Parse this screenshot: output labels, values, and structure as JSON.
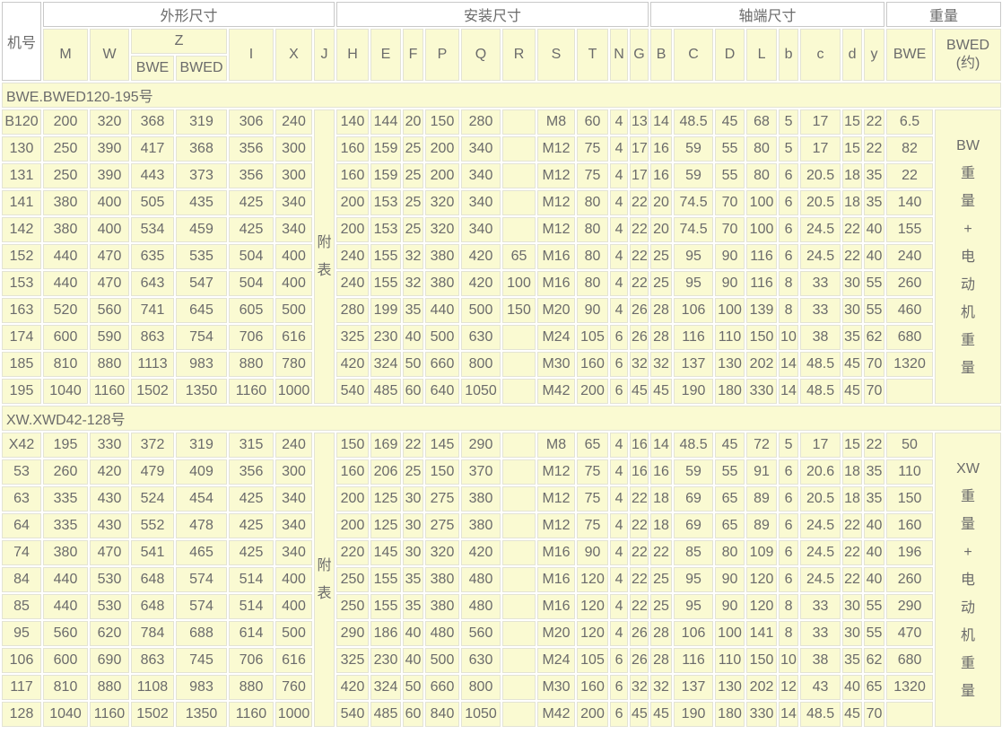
{
  "header": {
    "machine": "机号",
    "groups": [
      {
        "label": "外形尺寸"
      },
      {
        "label": "安装尺寸"
      },
      {
        "label": "轴端尺寸"
      },
      {
        "label": "重量"
      }
    ],
    "m": "M",
    "w": "W",
    "z": "Z",
    "z_bwe": "BWE",
    "z_bwed": "BWED",
    "i": "I",
    "x": "X",
    "j": "J",
    "install": [
      "H",
      "E",
      "F",
      "P",
      "Q",
      "R",
      "S",
      "T",
      "N",
      "G"
    ],
    "shaft": [
      "B",
      "C",
      "D",
      "L",
      "b",
      "c",
      "d",
      "y"
    ],
    "w_bwe": "BWE",
    "w_bwed": "BWED\n(约)"
  },
  "colors": {
    "cell_bg": "#fafad2",
    "text": "#6b6b6b",
    "white_bg": "#ffffff"
  },
  "sections": [
    {
      "title": "BWE.BWED120-195号",
      "j_note": "附\n表",
      "weight_note": "BW\n重\n量\n+\n电\n动\n机\n重\n量",
      "rows": [
        [
          "B120",
          "200",
          "320",
          "368",
          "319",
          "306",
          "240",
          "140",
          "144",
          "20",
          "150",
          "280",
          "",
          "M8",
          "60",
          "4",
          "13",
          "14",
          "48.5",
          "45",
          "68",
          "5",
          "17",
          "15",
          "22",
          "6.5"
        ],
        [
          "130",
          "250",
          "390",
          "417",
          "368",
          "356",
          "300",
          "160",
          "159",
          "25",
          "200",
          "340",
          "",
          "M12",
          "75",
          "4",
          "17",
          "16",
          "59",
          "55",
          "80",
          "5",
          "17",
          "15",
          "22",
          "82"
        ],
        [
          "131",
          "250",
          "390",
          "443",
          "373",
          "356",
          "300",
          "160",
          "159",
          "25",
          "200",
          "340",
          "",
          "M12",
          "75",
          "4",
          "17",
          "16",
          "59",
          "55",
          "80",
          "6",
          "20.5",
          "18",
          "35",
          "22"
        ],
        [
          "141",
          "380",
          "400",
          "505",
          "435",
          "425",
          "340",
          "200",
          "153",
          "25",
          "320",
          "340",
          "",
          "M12",
          "80",
          "4",
          "22",
          "20",
          "74.5",
          "70",
          "100",
          "6",
          "20.5",
          "18",
          "35",
          "140"
        ],
        [
          "142",
          "380",
          "400",
          "534",
          "459",
          "425",
          "340",
          "200",
          "153",
          "25",
          "320",
          "340",
          "",
          "M12",
          "80",
          "4",
          "22",
          "20",
          "74.5",
          "70",
          "100",
          "6",
          "24.5",
          "22",
          "40",
          "155"
        ],
        [
          "152",
          "440",
          "470",
          "635",
          "535",
          "504",
          "400",
          "240",
          "155",
          "32",
          "380",
          "420",
          "65",
          "M16",
          "80",
          "4",
          "22",
          "25",
          "95",
          "90",
          "116",
          "6",
          "24.5",
          "22",
          "40",
          "240"
        ],
        [
          "153",
          "440",
          "470",
          "643",
          "547",
          "504",
          "400",
          "240",
          "155",
          "32",
          "380",
          "420",
          "100",
          "M16",
          "80",
          "4",
          "22",
          "25",
          "95",
          "90",
          "116",
          "8",
          "33",
          "30",
          "55",
          "260"
        ],
        [
          "163",
          "520",
          "560",
          "741",
          "645",
          "605",
          "500",
          "280",
          "199",
          "35",
          "440",
          "500",
          "150",
          "M20",
          "90",
          "4",
          "26",
          "28",
          "106",
          "100",
          "139",
          "8",
          "33",
          "30",
          "55",
          "460"
        ],
        [
          "174",
          "600",
          "590",
          "863",
          "754",
          "706",
          "616",
          "325",
          "230",
          "40",
          "500",
          "630",
          "",
          "M24",
          "105",
          "6",
          "26",
          "28",
          "116",
          "110",
          "150",
          "10",
          "38",
          "35",
          "62",
          "680"
        ],
        [
          "185",
          "810",
          "880",
          "1113",
          "983",
          "880",
          "780",
          "420",
          "324",
          "50",
          "660",
          "800",
          "",
          "M30",
          "160",
          "6",
          "32",
          "32",
          "137",
          "130",
          "202",
          "14",
          "48.5",
          "45",
          "70",
          "1320"
        ],
        [
          "195",
          "1040",
          "1160",
          "1502",
          "1350",
          "1160",
          "1000",
          "540",
          "485",
          "60",
          "640",
          "1050",
          "",
          "M42",
          "200",
          "6",
          "45",
          "45",
          "190",
          "180",
          "330",
          "14",
          "48.5",
          "45",
          "70",
          ""
        ]
      ]
    },
    {
      "title": "XW.XWD42-128号",
      "j_note": "附\n表",
      "weight_note": "XW\n重\n量\n+\n电\n动\n机\n重\n量",
      "rows": [
        [
          "X42",
          "195",
          "330",
          "372",
          "319",
          "315",
          "240",
          "150",
          "169",
          "22",
          "145",
          "290",
          "",
          "M8",
          "65",
          "4",
          "16",
          "14",
          "48.5",
          "45",
          "72",
          "5",
          "17",
          "15",
          "22",
          "50"
        ],
        [
          "53",
          "260",
          "420",
          "479",
          "409",
          "356",
          "300",
          "160",
          "206",
          "25",
          "150",
          "370",
          "",
          "M12",
          "75",
          "4",
          "16",
          "16",
          "59",
          "55",
          "91",
          "6",
          "20.6",
          "18",
          "35",
          "110"
        ],
        [
          "63",
          "335",
          "430",
          "524",
          "454",
          "425",
          "340",
          "200",
          "125",
          "30",
          "275",
          "380",
          "",
          "M12",
          "75",
          "4",
          "22",
          "18",
          "69",
          "65",
          "89",
          "6",
          "20.5",
          "18",
          "35",
          "150"
        ],
        [
          "64",
          "335",
          "430",
          "552",
          "478",
          "425",
          "340",
          "200",
          "125",
          "30",
          "275",
          "380",
          "",
          "M12",
          "75",
          "4",
          "22",
          "18",
          "69",
          "65",
          "89",
          "6",
          "24.5",
          "22",
          "40",
          "160"
        ],
        [
          "74",
          "380",
          "470",
          "541",
          "465",
          "425",
          "340",
          "220",
          "145",
          "30",
          "320",
          "420",
          "",
          "M16",
          "90",
          "4",
          "22",
          "22",
          "85",
          "80",
          "109",
          "6",
          "24.5",
          "22",
          "40",
          "196"
        ],
        [
          "84",
          "440",
          "530",
          "648",
          "574",
          "514",
          "400",
          "250",
          "155",
          "35",
          "380",
          "480",
          "",
          "M16",
          "120",
          "4",
          "22",
          "25",
          "95",
          "90",
          "120",
          "6",
          "24.5",
          "22",
          "40",
          "260"
        ],
        [
          "85",
          "440",
          "530",
          "648",
          "574",
          "514",
          "400",
          "250",
          "155",
          "35",
          "380",
          "480",
          "",
          "M16",
          "120",
          "4",
          "22",
          "25",
          "95",
          "90",
          "120",
          "8",
          "33",
          "30",
          "55",
          "290"
        ],
        [
          "95",
          "560",
          "620",
          "784",
          "688",
          "614",
          "500",
          "290",
          "186",
          "40",
          "480",
          "560",
          "",
          "M20",
          "120",
          "4",
          "26",
          "28",
          "106",
          "100",
          "141",
          "8",
          "33",
          "30",
          "55",
          "470"
        ],
        [
          "106",
          "600",
          "690",
          "863",
          "745",
          "706",
          "616",
          "325",
          "230",
          "40",
          "500",
          "630",
          "",
          "M24",
          "105",
          "6",
          "26",
          "28",
          "116",
          "110",
          "150",
          "10",
          "38",
          "35",
          "62",
          "680"
        ],
        [
          "117",
          "810",
          "880",
          "1108",
          "983",
          "880",
          "760",
          "420",
          "324",
          "50",
          "660",
          "800",
          "",
          "M30",
          "160",
          "6",
          "32",
          "32",
          "137",
          "130",
          "202",
          "12",
          "43",
          "40",
          "65",
          "1320"
        ],
        [
          "128",
          "1040",
          "1160",
          "1502",
          "1350",
          "1160",
          "1000",
          "540",
          "485",
          "60",
          "840",
          "1050",
          "",
          "M42",
          "200",
          "6",
          "45",
          "45",
          "190",
          "180",
          "330",
          "14",
          "48.5",
          "45",
          "70",
          ""
        ]
      ]
    }
  ]
}
